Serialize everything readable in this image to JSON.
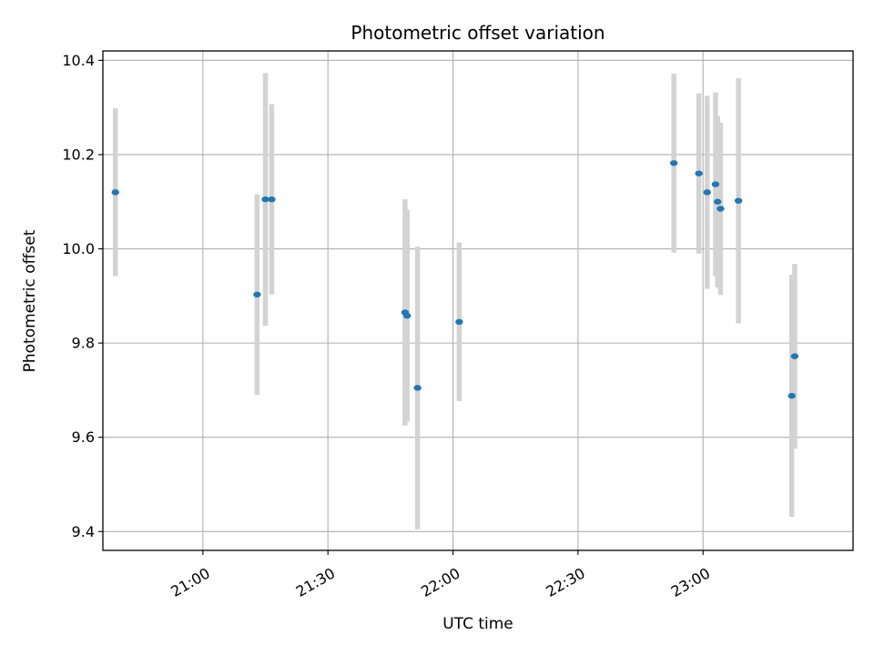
{
  "chart_data": {
    "type": "scatter",
    "title": "Photometric offset variation",
    "xlabel": "UTC time",
    "ylabel": "Photometric offset",
    "x_axis_type": "time",
    "x_range": [
      "20:36",
      "23:36"
    ],
    "ylim": [
      9.36,
      10.42
    ],
    "grid": true,
    "x_ticks": [
      {
        "time": "21:00",
        "label": "21:00"
      },
      {
        "time": "21:30",
        "label": "21:30"
      },
      {
        "time": "22:00",
        "label": "22:00"
      },
      {
        "time": "22:30",
        "label": "22:30"
      },
      {
        "time": "23:00",
        "label": "23:00"
      }
    ],
    "y_ticks": [
      9.4,
      9.6,
      9.8,
      10.0,
      10.2,
      10.4
    ],
    "y_tick_labels": [
      "9.4",
      "9.6",
      "9.8",
      "10.0",
      "10.2",
      "10.4"
    ],
    "point_color": "#1f77b4",
    "errorbar_color": "#d3d3d3",
    "points": [
      {
        "time": "20:39",
        "y": 10.12,
        "err": 0.178
      },
      {
        "time": "21:13",
        "y": 9.903,
        "err": 0.213
      },
      {
        "time": "21:15",
        "y": 10.105,
        "err": 0.268
      },
      {
        "time": "21:16.5",
        "y": 10.105,
        "err": 0.202
      },
      {
        "time": "21:48.5",
        "y": 9.865,
        "err": 0.24
      },
      {
        "time": "21:49",
        "y": 9.858,
        "err": 0.225
      },
      {
        "time": "21:51.5",
        "y": 9.705,
        "err": 0.3
      },
      {
        "time": "22:01.5",
        "y": 9.845,
        "err": 0.168
      },
      {
        "time": "22:53",
        "y": 10.182,
        "err": 0.19
      },
      {
        "time": "22:59",
        "y": 10.16,
        "err": 0.17
      },
      {
        "time": "23:01",
        "y": 10.12,
        "err": 0.205
      },
      {
        "time": "23:03",
        "y": 10.137,
        "err": 0.195
      },
      {
        "time": "23:03.5",
        "y": 10.1,
        "err": 0.182
      },
      {
        "time": "23:04.2",
        "y": 10.085,
        "err": 0.183
      },
      {
        "time": "23:08.5",
        "y": 10.102,
        "err": 0.26
      },
      {
        "time": "23:21.3",
        "y": 9.688,
        "err": 0.257
      },
      {
        "time": "23:22",
        "y": 9.772,
        "err": 0.196
      }
    ]
  }
}
